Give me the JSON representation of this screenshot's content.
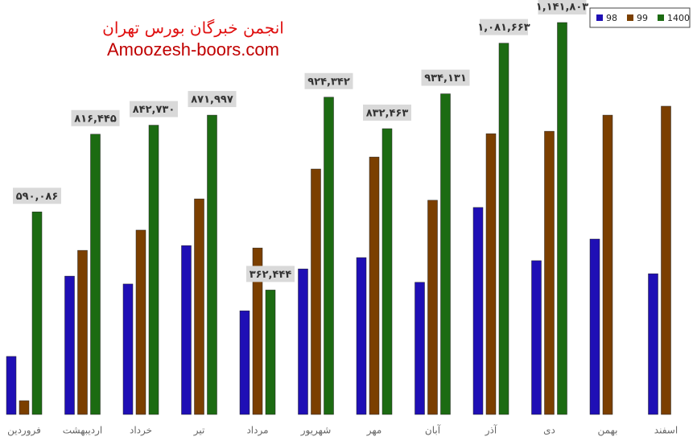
{
  "chart_data": {
    "type": "bar",
    "watermark": [
      "انجمن خبرگان بورس تهران",
      "Amoozesh-boors.com"
    ],
    "categories": [
      "فروردین",
      "اردیبهشت",
      "خرداد",
      "تیر",
      "مرداد",
      "شهریور",
      "مهر",
      "آبان",
      "آذر",
      "دی",
      "بهمن",
      "اسفند"
    ],
    "series": [
      {
        "name": "98",
        "color": "#1f0fb5",
        "values": [
          169000,
          403000,
          380000,
          492000,
          302000,
          424000,
          457000,
          385000,
          603000,
          448000,
          511000,
          410000
        ]
      },
      {
        "name": "99",
        "color": "#7b3f00",
        "values": [
          40000,
          478000,
          537000,
          628000,
          485000,
          715000,
          750000,
          624000,
          818000,
          825000,
          872000,
          898000
        ]
      },
      {
        "name": "1400",
        "color": "#1c6b12",
        "values": [
          590086,
          816445,
          842730,
          871997,
          362444,
          924342,
          832463,
          934131,
          1081663,
          1141803,
          null,
          null
        ],
        "value_labels": [
          "۵۹۰,۰۸۶",
          "۸۱۶,۴۴۵",
          "۸۴۲,۷۳۰",
          "۸۷۱,۹۹۷",
          "۳۶۲,۴۴۴",
          "۹۲۴,۳۴۲",
          "۸۳۲,۴۶۳",
          "۹۳۴,۱۳۱",
          "۱,۰۸۱,۶۶۳",
          "۱,۱۴۱,۸۰۳",
          null,
          null
        ]
      }
    ],
    "legend": "top-right"
  }
}
